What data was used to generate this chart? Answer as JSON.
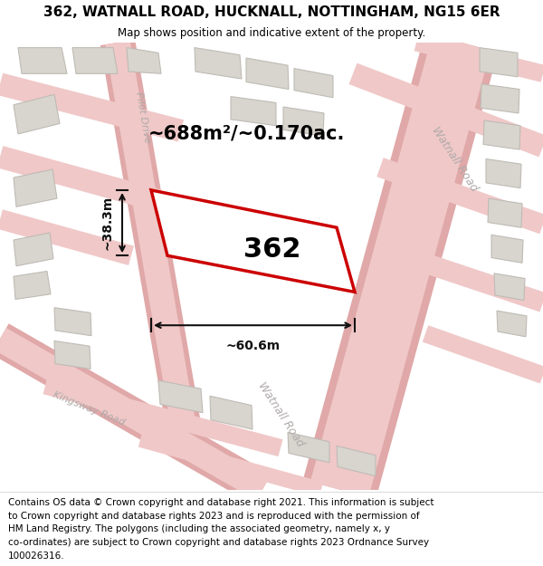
{
  "title_line1": "362, WATNALL ROAD, HUCKNALL, NOTTINGHAM, NG15 6ER",
  "title_line2": "Map shows position and indicative extent of the property.",
  "area_label": "~688m²/~0.170ac.",
  "width_label": "~60.6m",
  "height_label": "~38.3m",
  "plot_number": "362",
  "map_bg": "#ede8e2",
  "road_color": "#f0c8c8",
  "road_edge": "#e0a8a8",
  "building_color": "#d8d4ce",
  "building_edge": "#bfbbb5",
  "plot_fill": "#ffffff",
  "plot_edge": "#cc0000",
  "road_label_color": "#b0aaaa",
  "dim_color": "#111111",
  "footer_lines": [
    "Contains OS data © Crown copyright and database right 2021. This information is subject",
    "to Crown copyright and database rights 2023 and is reproduced with the permission of",
    "HM Land Registry. The polygons (including the associated geometry, namely x, y",
    "co-ordinates) are subject to Crown copyright and database rights 2023 Ordnance Survey",
    "100026316."
  ]
}
